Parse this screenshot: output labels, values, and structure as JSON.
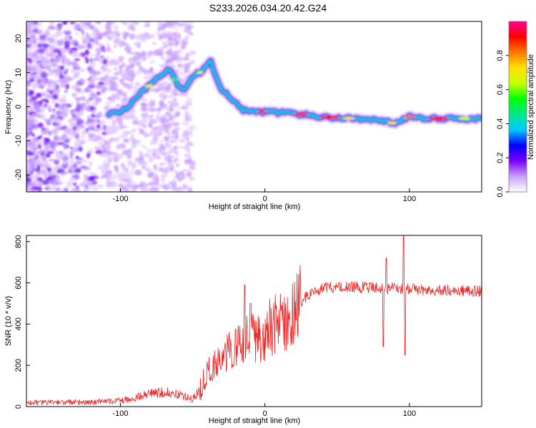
{
  "title": "S233.2026.034.20.42.G24",
  "chart_data": [
    {
      "type": "heatmap",
      "xlabel": "Height of straight line (km)",
      "ylabel": "Frequency (Hz)",
      "xlim": [
        -165,
        150
      ],
      "ylim": [
        -25,
        25
      ],
      "xticks": [
        -100,
        0,
        100
      ],
      "yticks": [
        -20,
        -10,
        0,
        10,
        20
      ],
      "ridge": [
        {
          "x": -108,
          "y": -2
        },
        {
          "x": -100,
          "y": -1.5
        },
        {
          "x": -95,
          "y": 0
        },
        {
          "x": -90,
          "y": 2
        },
        {
          "x": -85,
          "y": 4.5
        },
        {
          "x": -80,
          "y": 6
        },
        {
          "x": -75,
          "y": 8
        },
        {
          "x": -70,
          "y": 10
        },
        {
          "x": -65,
          "y": 11
        },
        {
          "x": -60,
          "y": 6
        },
        {
          "x": -55,
          "y": 5
        },
        {
          "x": -50,
          "y": 9
        },
        {
          "x": -45,
          "y": 10
        },
        {
          "x": -40,
          "y": 12
        },
        {
          "x": -38,
          "y": 14
        },
        {
          "x": -35,
          "y": 10
        },
        {
          "x": -30,
          "y": 5
        },
        {
          "x": -25,
          "y": 3
        },
        {
          "x": -20,
          "y": 1
        },
        {
          "x": -15,
          "y": -1
        },
        {
          "x": -10,
          "y": -1.5
        },
        {
          "x": 0,
          "y": -1.5
        },
        {
          "x": 20,
          "y": -2
        },
        {
          "x": 40,
          "y": -3
        },
        {
          "x": 60,
          "y": -3.5
        },
        {
          "x": 70,
          "y": -4
        },
        {
          "x": 80,
          "y": -4
        },
        {
          "x": 90,
          "y": -5
        },
        {
          "x": 100,
          "y": -3
        },
        {
          "x": 115,
          "y": -3.5
        },
        {
          "x": 130,
          "y": -3.5
        },
        {
          "x": 150,
          "y": -3.5
        }
      ],
      "colorbar": {
        "label": "Normalized spectral amplitude",
        "ticks": [
          0.0,
          0.2,
          0.4,
          0.6,
          0.8
        ],
        "tick_labels": [
          "0.0",
          "0.2",
          "0.4",
          "0.6",
          "0.8"
        ],
        "range": [
          0,
          1
        ],
        "stops": [
          "#ffffff",
          "#c9a0ff",
          "#7b00ff",
          "#0000ff",
          "#00c8ff",
          "#00e68c",
          "#00ff00",
          "#c8ff00",
          "#ffe100",
          "#ff7800",
          "#ff0000",
          "#ff0096"
        ]
      }
    },
    {
      "type": "line",
      "xlabel": "Height of straight line (km)",
      "ylabel": "SNR (10 * v/v)",
      "xlim": [
        -165,
        150
      ],
      "ylim": [
        0,
        830
      ],
      "xticks": [
        -100,
        0,
        100
      ],
      "yticks": [
        0,
        200,
        400,
        600,
        800
      ],
      "color": "#ee2020",
      "envelope": [
        {
          "x": -165,
          "y": 20
        },
        {
          "x": -120,
          "y": 22
        },
        {
          "x": -100,
          "y": 28
        },
        {
          "x": -90,
          "y": 45
        },
        {
          "x": -80,
          "y": 60
        },
        {
          "x": -70,
          "y": 70
        },
        {
          "x": -60,
          "y": 60
        },
        {
          "x": -50,
          "y": 35
        },
        {
          "x": -45,
          "y": 80
        },
        {
          "x": -40,
          "y": 170
        },
        {
          "x": -30,
          "y": 240
        },
        {
          "x": -20,
          "y": 290
        },
        {
          "x": -10,
          "y": 330
        },
        {
          "x": 0,
          "y": 360
        },
        {
          "x": 10,
          "y": 400
        },
        {
          "x": 20,
          "y": 470
        },
        {
          "x": 30,
          "y": 540
        },
        {
          "x": 40,
          "y": 575
        },
        {
          "x": 60,
          "y": 580
        },
        {
          "x": 80,
          "y": 575
        },
        {
          "x": 100,
          "y": 570
        },
        {
          "x": 120,
          "y": 565
        },
        {
          "x": 150,
          "y": 560
        }
      ],
      "spikes": [
        {
          "x": -10,
          "y": 500
        },
        {
          "x": -14,
          "y": 590
        },
        {
          "x": 82,
          "y": 290
        },
        {
          "x": 84,
          "y": 720
        },
        {
          "x": 96,
          "y": 830
        },
        {
          "x": 97,
          "y": 250
        }
      ]
    }
  ]
}
